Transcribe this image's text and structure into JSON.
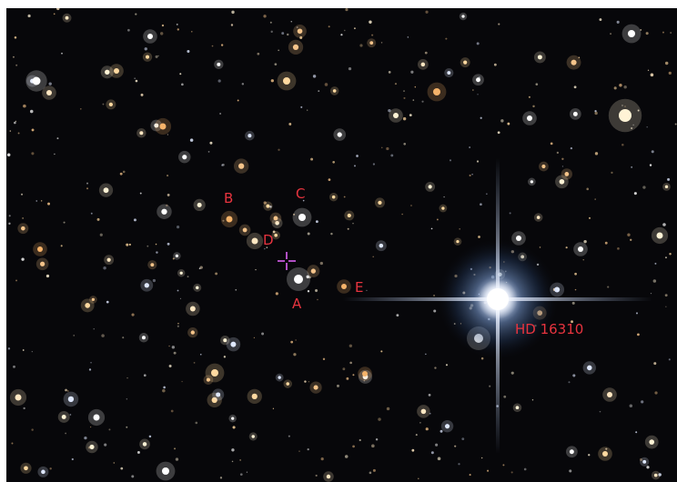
{
  "labels": {
    "b": "B",
    "c": "C",
    "d": "D",
    "a": "A",
    "e": "E",
    "hd": "HD 16310"
  },
  "colors": {
    "background": "#07070a",
    "label": "#e8343f",
    "marker": "#b04fc4"
  },
  "icons": {
    "marker": "crosshair-icon"
  }
}
